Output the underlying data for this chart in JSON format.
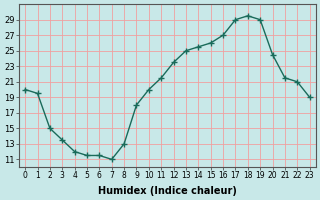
{
  "x": [
    0,
    1,
    2,
    3,
    4,
    5,
    6,
    7,
    8,
    9,
    10,
    11,
    12,
    13,
    14,
    15,
    16,
    17,
    18,
    19,
    20,
    21,
    22,
    23
  ],
  "y": [
    20,
    19.5,
    15,
    13.5,
    12,
    11.5,
    11.5,
    11,
    13,
    18,
    20,
    21.5,
    23.5,
    25,
    25.5,
    26,
    27,
    29,
    29.5,
    29,
    24.5,
    21.5,
    21,
    19
  ],
  "line_color": "#1a6b5a",
  "marker": "+",
  "marker_size": 5,
  "bg_color": "#c8e8e8",
  "grid_color": "#f0a0a0",
  "xlabel": "Humidex (Indice chaleur)",
  "ylim": [
    10,
    31
  ],
  "xlim": [
    -0.5,
    23.5
  ],
  "yticks": [
    11,
    13,
    15,
    17,
    19,
    21,
    23,
    25,
    27,
    29
  ],
  "xticks": [
    0,
    1,
    2,
    3,
    4,
    5,
    6,
    7,
    8,
    9,
    10,
    11,
    12,
    13,
    14,
    15,
    16,
    17,
    18,
    19,
    20,
    21,
    22,
    23
  ]
}
